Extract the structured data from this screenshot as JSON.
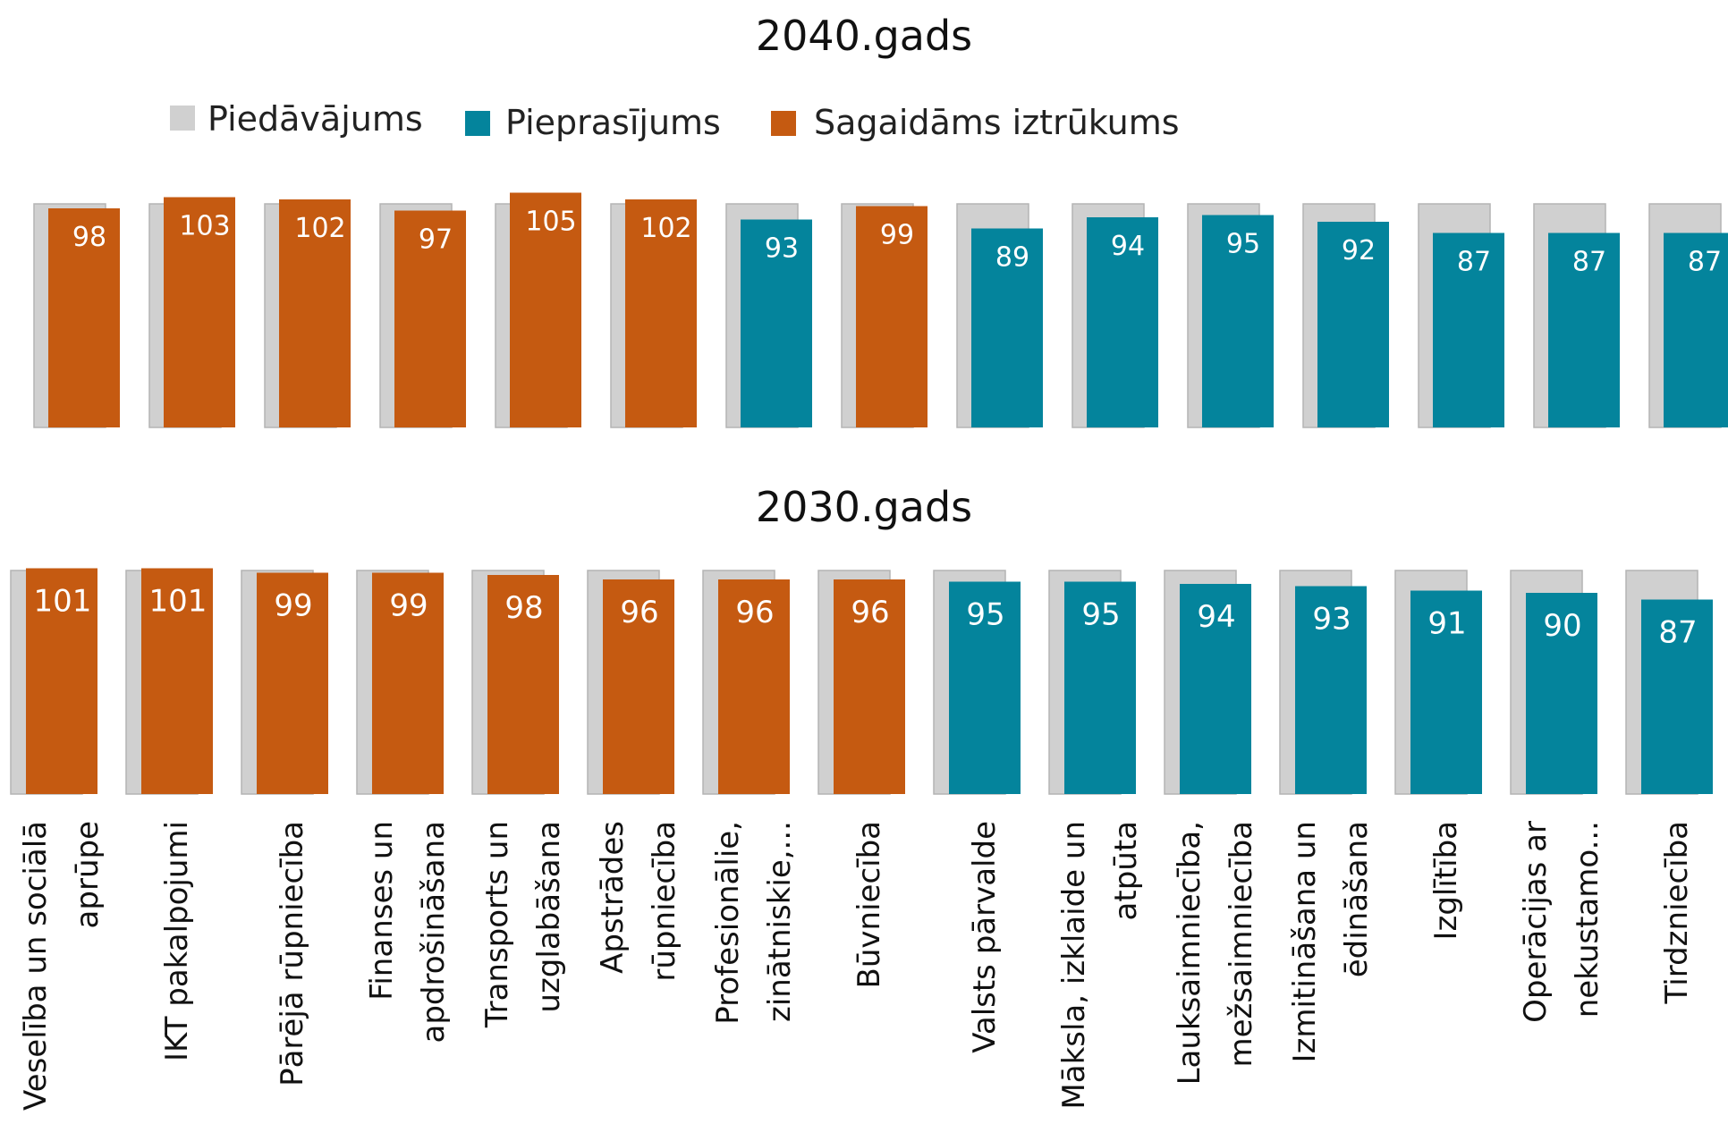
{
  "colors": {
    "supply": "#d0d0d0",
    "supply_edge": "#b4b4b4",
    "demand": "#04849c",
    "shortage": "#c55a11"
  },
  "chart_data": [
    {
      "type": "bar",
      "title": "2040.gads",
      "legend": [
        {
          "key": "supply",
          "label": "Piedāvājums"
        },
        {
          "key": "demand",
          "label": "Pieprasījums"
        },
        {
          "key": "shortage",
          "label": "Sagaidāms iztrūkums"
        }
      ],
      "categories": [
        "Veselība un sociālā aprūpe",
        "IKT pakalpojumi",
        "Pārējā rūpniecība",
        "Finanses un apdrošināšana",
        "Transports un uzglabāšana",
        "Apstrādes rūpniecība",
        "Profesionālie, zinātniskie,...",
        "Būvniecība",
        "Valsts pārvalde",
        "Māksla, izklaide un atpūta",
        "Lauksaimniecība, mežsaimniecība",
        "Izmitināšana un ēdināšana",
        "Izglītība",
        "Operācijas ar nekustamo...",
        "Tirdzniecība"
      ],
      "series": [
        {
          "name": "Piedāvājums",
          "values": [
            100,
            100,
            100,
            100,
            100,
            100,
            100,
            100,
            100,
            100,
            100,
            100,
            100,
            100,
            100
          ]
        },
        {
          "name": "Pieprasījums",
          "values": [
            98,
            103,
            102,
            97,
            105,
            102,
            93,
            99,
            89,
            94,
            95,
            92,
            87,
            87,
            87
          ]
        }
      ],
      "shortage": [
        true,
        true,
        true,
        true,
        true,
        true,
        false,
        true,
        false,
        false,
        false,
        false,
        false,
        false,
        false
      ]
    },
    {
      "type": "bar",
      "title": "2030.gads",
      "categories": [
        "Veselība un sociālā aprūpe",
        "IKT pakalpojumi",
        "Pārējā rūpniecība",
        "Finanses un apdrošināšana",
        "Transports un uzglabāšana",
        "Apstrādes rūpniecība",
        "Profesionālie, zinātniskie,...",
        "Būvniecība",
        "Valsts pārvalde",
        "Māksla, izklaide un atpūta",
        "Lauksaimniecība, mežsaimniecība",
        "Izmitināšana un ēdināšana",
        "Izglītība",
        "Operācijas ar nekustamo...",
        "Tirdzniecība"
      ],
      "series": [
        {
          "name": "Piedāvājums",
          "values": [
            100,
            100,
            100,
            100,
            100,
            100,
            100,
            100,
            100,
            100,
            100,
            100,
            100,
            100,
            100
          ]
        },
        {
          "name": "Pieprasījums",
          "values": [
            101,
            101,
            99,
            99,
            98,
            96,
            96,
            96,
            95,
            95,
            94,
            93,
            91,
            90,
            87
          ]
        }
      ],
      "shortage": [
        true,
        true,
        true,
        true,
        true,
        true,
        true,
        true,
        false,
        false,
        false,
        false,
        false,
        false,
        false
      ]
    }
  ],
  "category_labels": [
    [
      "Veselība un sociālā",
      "aprūpe"
    ],
    [
      "IKT pakalpojumi"
    ],
    [
      "Pārējā rūpniecība"
    ],
    [
      "Finanses un",
      "apdrošināšana"
    ],
    [
      "Transports un",
      "uzglabāšana"
    ],
    [
      "Apstrādes",
      "rūpniecība"
    ],
    [
      "Profesionālie,",
      "zinātniskie,..."
    ],
    [
      "Būvniecība"
    ],
    [
      "Valsts pārvalde"
    ],
    [
      "Māksla, izklaide un",
      "atpūta"
    ],
    [
      "Lauksaimniecība,",
      "mežsaimniecība"
    ],
    [
      "Izmitināšana un",
      "ēdināšana"
    ],
    [
      "Izglītība"
    ],
    [
      "Operācijas ar",
      "nekustamo..."
    ],
    [
      "Tirdzniecība"
    ]
  ]
}
